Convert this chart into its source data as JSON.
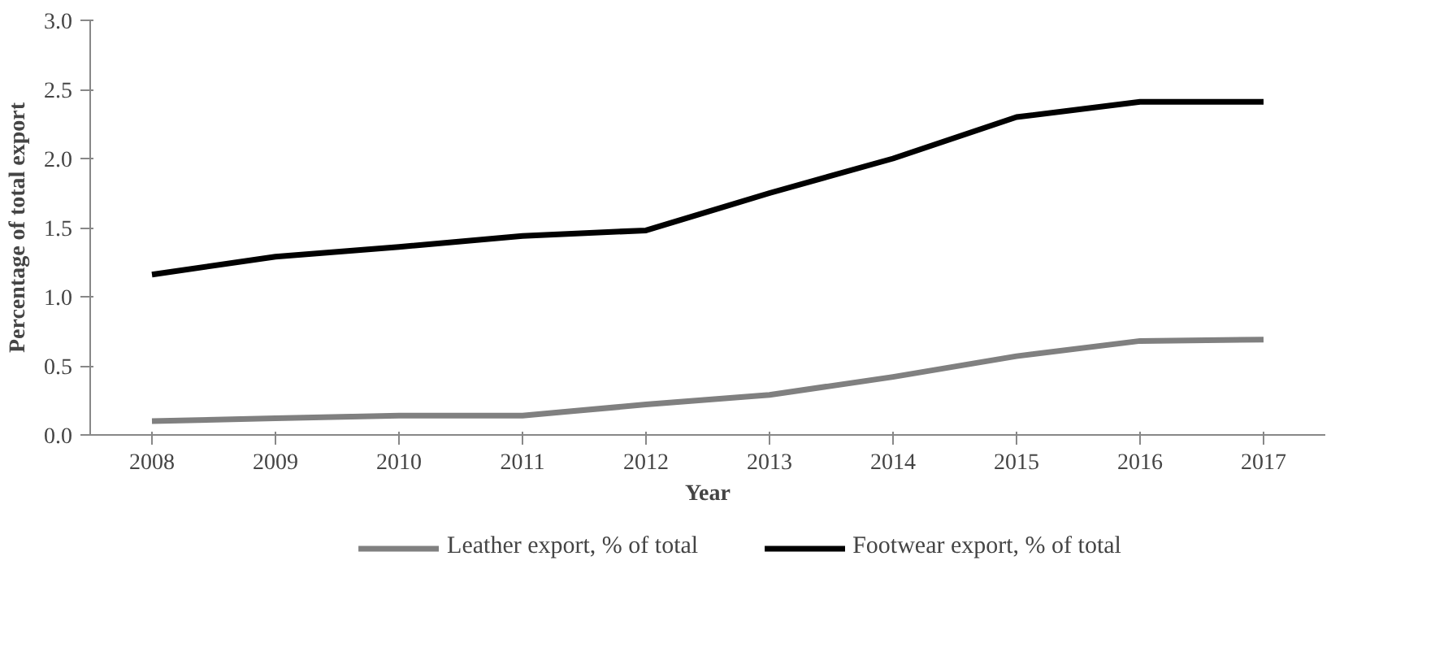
{
  "chart_data": {
    "type": "line",
    "xlabel": "Year",
    "ylabel": "Percentage of total export",
    "categories": [
      "2008",
      "2009",
      "2010",
      "2011",
      "2012",
      "2013",
      "2014",
      "2015",
      "2016",
      "2017"
    ],
    "series": [
      {
        "name": "Leather export, % of total",
        "color": "#808080",
        "values": [
          0.1,
          0.12,
          0.14,
          0.14,
          0.22,
          0.29,
          0.42,
          0.57,
          0.68,
          0.69
        ]
      },
      {
        "name": "Footwear export, % of total",
        "color": "#000000",
        "values": [
          1.16,
          1.29,
          1.36,
          1.44,
          1.48,
          1.75,
          2.0,
          2.3,
          2.41,
          2.41
        ]
      }
    ],
    "ylim": [
      0,
      3
    ],
    "yticks": [
      {
        "value": 0,
        "label": "0.0"
      },
      {
        "value": 0.5,
        "label": "0.5"
      },
      {
        "value": 1,
        "label": "1.0"
      },
      {
        "value": 1.5,
        "label": "1.5"
      },
      {
        "value": 2,
        "label": "2.0"
      },
      {
        "value": 2.5,
        "label": "2.5"
      },
      {
        "value": 3,
        "label": "3.0"
      }
    ],
    "grid": false,
    "legend": "bottom",
    "marker": "none",
    "line_style": "solid"
  }
}
